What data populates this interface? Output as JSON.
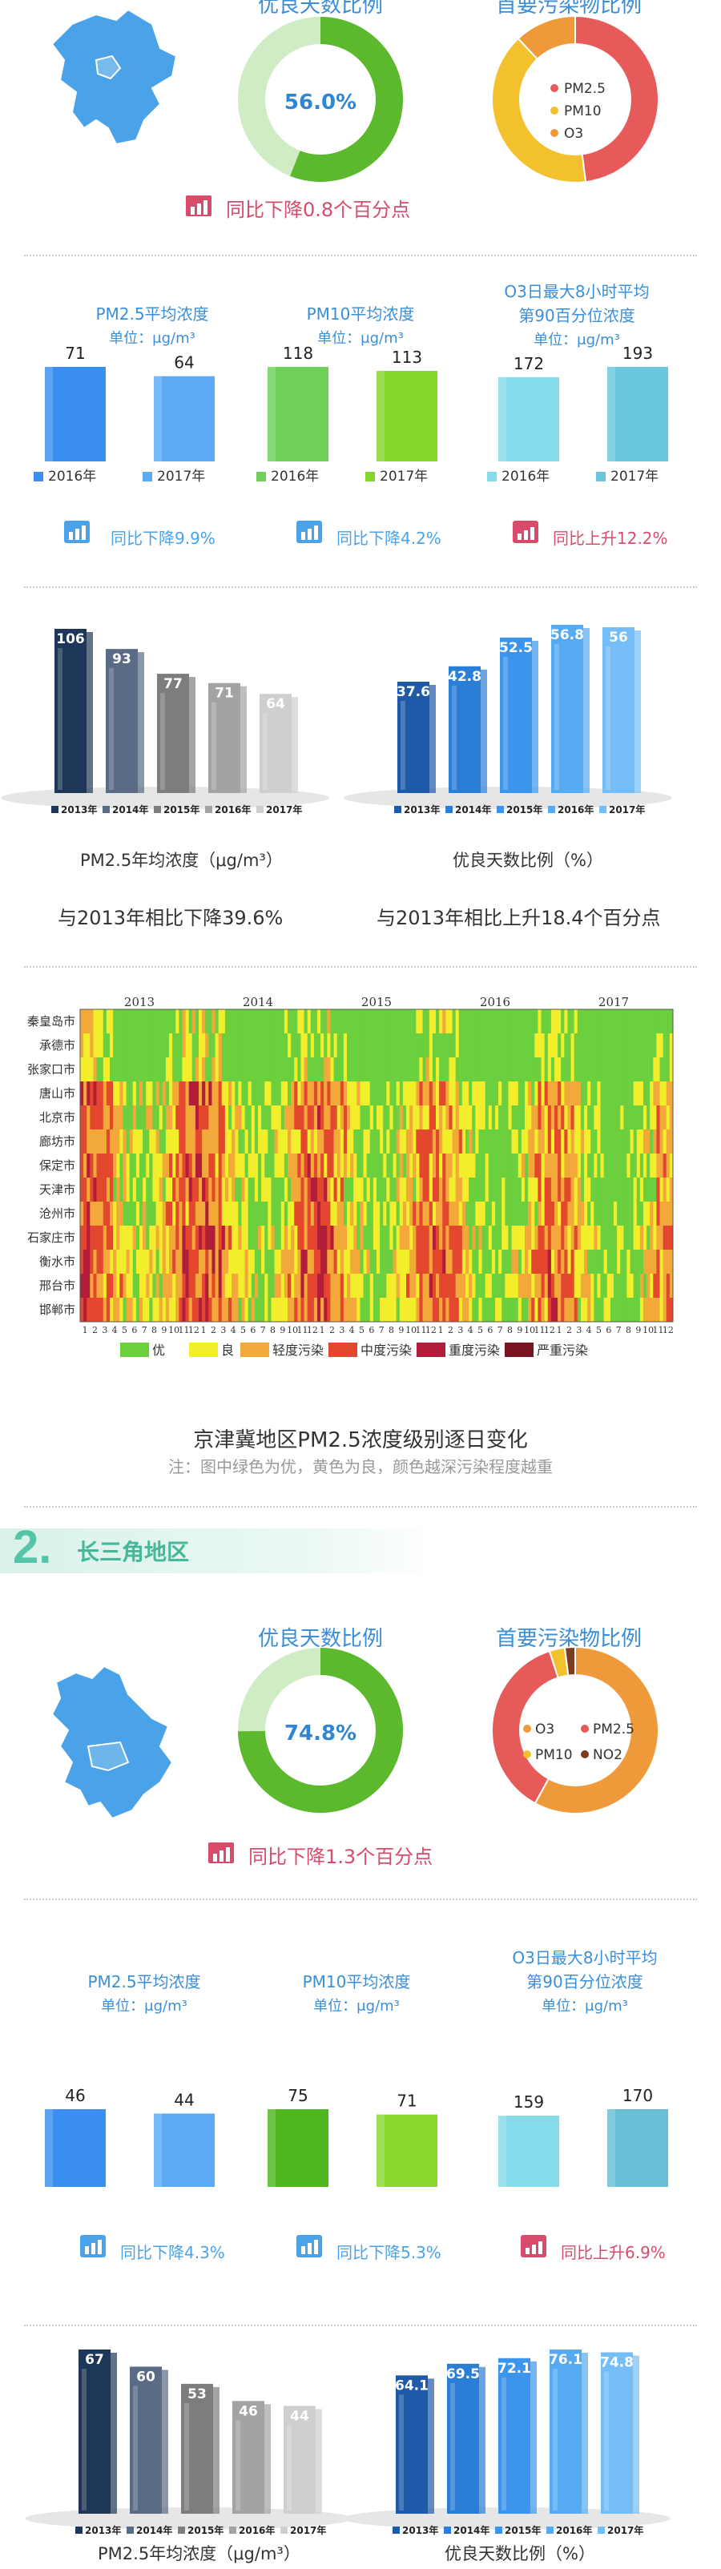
{
  "section1": {
    "good_days_title": "优良天数比例",
    "pollutant_title": "首要污染物比例",
    "good_days_pct": "56.0%",
    "good_days_change": "同比下降0.8个百分点",
    "pie_legend": [
      "PM2.5",
      "PM10",
      "O3"
    ],
    "kpis": [
      {
        "title": "PM2.5平均浓度",
        "unit": "单位：μg/m³",
        "years": [
          "2016年",
          "2017年"
        ],
        "change": "同比下降9.9%"
      },
      {
        "title": "PM10平均浓度",
        "unit": "单位：μg/m³",
        "years": [
          "2016年",
          "2017年"
        ],
        "change": "同比下降4.2%"
      },
      {
        "title": "O3日最大8小时平均",
        "title2": "第90百分位浓度",
        "unit": "单位：μg/m³",
        "years": [
          "2016年",
          "2017年"
        ],
        "change": "同比上升12.2%"
      }
    ],
    "trend_pm_label": "PM2.5年均浓度（μg/m³）",
    "trend_good_label": "优良天数比例（%）",
    "trend_pm_change": "与2013年相比下降39.6%",
    "trend_good_change": "与2013年相比上升18.4个百分点",
    "heatmap_years": [
      "2013",
      "2014",
      "2015",
      "2016",
      "2017"
    ],
    "heatmap_cities": [
      "秦皇岛市",
      "承德市",
      "张家口市",
      "唐山市",
      "北京市",
      "廊坊市",
      "保定市",
      "天津市",
      "沧州市",
      "石家庄市",
      "衡水市",
      "邢台市",
      "邯郸市"
    ],
    "heatmap_months": [
      "1",
      "2",
      "3",
      "4",
      "5",
      "6",
      "7",
      "8",
      "9",
      "10",
      "11",
      "12"
    ],
    "heatmap_legend": [
      "优",
      "良",
      "轻度污染",
      "中度污染",
      "重度污染",
      "严重污染"
    ],
    "heatmap_title": "京津冀地区PM2.5浓度级别逐日变化",
    "heatmap_note": "注：图中绿色为优，黄色为良，颜色越深污染程度越重"
  },
  "section2": {
    "number": "2.",
    "title": "长三角地区",
    "good_days_title": "优良天数比例",
    "pollutant_title": "首要污染物比例",
    "good_days_pct": "74.8%",
    "good_days_change": "同比下降1.3个百分点",
    "pie_legend": [
      "O3",
      "PM2.5",
      "PM10",
      "NO2"
    ],
    "kpis": [
      {
        "title": "PM2.5平均浓度",
        "unit": "单位：μg/m³",
        "years": [
          "2016年",
          "2017年"
        ],
        "change": "同比下降4.3%"
      },
      {
        "title": "PM10平均浓度",
        "unit": "单位：μg/m³",
        "years": [
          "2016年",
          "2017年"
        ],
        "change": "同比下降5.3%"
      },
      {
        "title": "O3日最大8小时平均",
        "title2": "第90百分位浓度",
        "unit": "单位：μg/m³",
        "years": [
          "2016年",
          "2017年"
        ],
        "change": "同比上升6.9%"
      }
    ],
    "trend_pm_label": "PM2.5年均浓度（μg/m³）",
    "trend_good_label": "优良天数比例（%）"
  },
  "colors": {
    "blue_title": "#3a8ed8",
    "green_ring": "#5cb82d",
    "green_light": "#cfecc4",
    "red_arrow": "#d94b6a",
    "blue_arrow": "#4aa3e8"
  },
  "chart_data": [
    {
      "type": "pie",
      "title": "优良天数比例",
      "labels": [
        "优良",
        "非优良"
      ],
      "values": [
        56.0,
        44.0
      ]
    },
    {
      "type": "pie",
      "title": "首要污染物比例",
      "labels": [
        "PM2.5",
        "PM10",
        "O3"
      ],
      "values": [
        48,
        40,
        12
      ]
    },
    {
      "type": "bar",
      "title": "PM2.5平均浓度",
      "categories": [
        "2016年",
        "2017年"
      ],
      "values": [
        71,
        64
      ]
    },
    {
      "type": "bar",
      "title": "PM10平均浓度",
      "categories": [
        "2016年",
        "2017年"
      ],
      "values": [
        118,
        113
      ]
    },
    {
      "type": "bar",
      "title": "O3日最大8小时平均第90百分位浓度",
      "categories": [
        "2016年",
        "2017年"
      ],
      "values": [
        172,
        193
      ]
    },
    {
      "type": "bar",
      "title": "",
      "xlabel": "PM2.5年均浓度（μg/m³）",
      "categories": [
        "2013年",
        "2014年",
        "2015年",
        "2016年",
        "2017年"
      ],
      "values": [
        106,
        93,
        77,
        71,
        64
      ]
    },
    {
      "type": "bar",
      "title": "",
      "xlabel": "优良天数比例（%）",
      "categories": [
        "2013年",
        "2014年",
        "2015年",
        "2016年",
        "2017年"
      ],
      "values": [
        37.6,
        42.8,
        52.5,
        56.8,
        56.0
      ]
    },
    {
      "type": "heatmap",
      "title": "京津冀地区PM2.5浓度级别逐日变化",
      "rows": [
        "秦皇岛市",
        "承德市",
        "张家口市",
        "唐山市",
        "北京市",
        "廊坊市",
        "保定市",
        "天津市",
        "沧州市",
        "石家庄市",
        "衡水市",
        "邢台市",
        "邯郸市"
      ],
      "columns": [
        "2013",
        "2014",
        "2015",
        "2016",
        "2017"
      ],
      "levels": [
        "优",
        "良",
        "轻度污染",
        "中度污染",
        "重度污染",
        "严重污染"
      ]
    },
    {
      "type": "pie",
      "title": "优良天数比例",
      "labels": [
        "优良",
        "非优良"
      ],
      "values": [
        74.8,
        25.2
      ]
    },
    {
      "type": "pie",
      "title": "首要污染物比例",
      "labels": [
        "O3",
        "PM2.5",
        "PM10",
        "NO2"
      ],
      "values": [
        58,
        37,
        3,
        2
      ]
    },
    {
      "type": "bar",
      "title": "PM2.5平均浓度",
      "categories": [
        "2016年",
        "2017年"
      ],
      "values": [
        46,
        44
      ]
    },
    {
      "type": "bar",
      "title": "PM10平均浓度",
      "categories": [
        "2016年",
        "2017年"
      ],
      "values": [
        75,
        71
      ]
    },
    {
      "type": "bar",
      "title": "O3日最大8小时平均第90百分位浓度",
      "categories": [
        "2016年",
        "2017年"
      ],
      "values": [
        159,
        170
      ]
    },
    {
      "type": "bar",
      "title": "",
      "xlabel": "PM2.5年均浓度（μg/m³）",
      "categories": [
        "2013年",
        "2014年",
        "2015年",
        "2016年",
        "2017年"
      ],
      "values": [
        67,
        60,
        53,
        46,
        44
      ]
    },
    {
      "type": "bar",
      "title": "",
      "xlabel": "优良天数比例（%）",
      "categories": [
        "2013年",
        "2014年",
        "2015年",
        "2016年",
        "2017年"
      ],
      "values": [
        64.1,
        69.5,
        72.1,
        76.1,
        74.8
      ]
    }
  ]
}
